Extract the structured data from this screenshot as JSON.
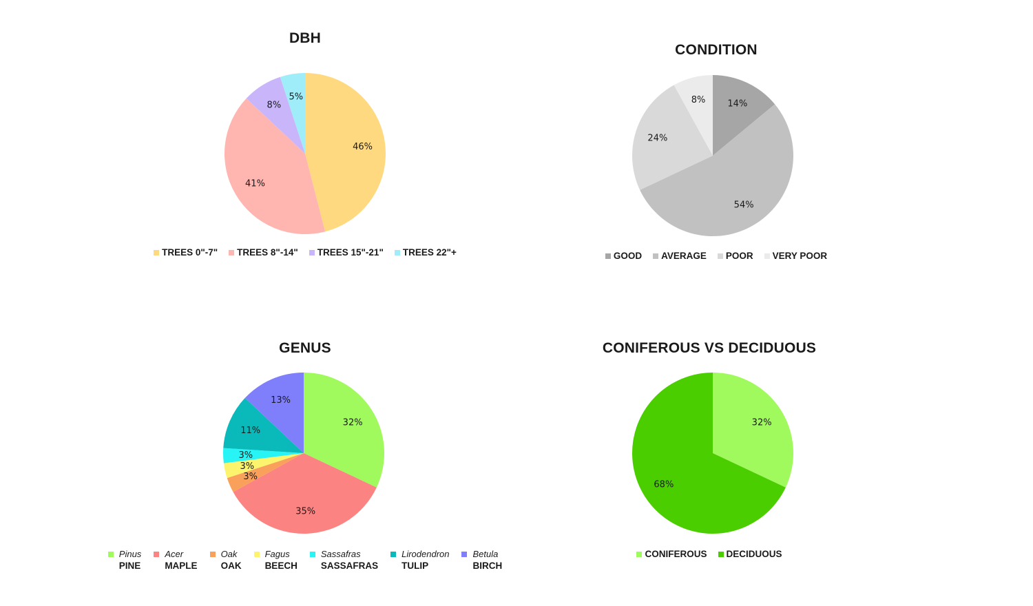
{
  "chart_data": [
    {
      "type": "pie",
      "title": "DBH",
      "slices": [
        {
          "label": "TREES 0\"-7\"",
          "value": 46,
          "display": "46%",
          "color": "#FFD97F"
        },
        {
          "label": "TREES 8\"-14\"",
          "value": 41,
          "display": "41%",
          "color": "#FFB5B0"
        },
        {
          "label": "TREES 15\"-21\"",
          "value": 8,
          "display": "8%",
          "color": "#C9B6FA"
        },
        {
          "label": "TREES 22\"+",
          "value": 5,
          "display": "5%",
          "color": "#9EEDF9"
        }
      ],
      "legend_position": "bottom"
    },
    {
      "type": "pie",
      "title": "CONDITION",
      "slices": [
        {
          "label": "GOOD",
          "value": 14,
          "display": "14%",
          "color": "#A6A6A6"
        },
        {
          "label": "AVERAGE",
          "value": 54,
          "display": "54%",
          "color": "#C1C1C1"
        },
        {
          "label": "POOR",
          "value": 24,
          "display": "24%",
          "color": "#D9D9D9"
        },
        {
          "label": "VERY POOR",
          "value": 8,
          "display": "8%",
          "color": "#EBEBEB"
        }
      ],
      "legend_position": "bottom"
    },
    {
      "type": "pie",
      "title": "GENUS",
      "slices": [
        {
          "label": "Pinus",
          "common": "PINE",
          "value": 32,
          "display": "32%",
          "color": "#A0FA5D"
        },
        {
          "label": "Acer",
          "common": "MAPLE",
          "value": 35,
          "display": "35%",
          "color": "#FB8483"
        },
        {
          "label": "Oak",
          "common": "OAK",
          "value": 3,
          "display": "3%",
          "color": "#F9A15B"
        },
        {
          "label": "Fagus",
          "common": "BEECH",
          "value": 3,
          "display": "3%",
          "color": "#FCF46C"
        },
        {
          "label": "Sassafras",
          "common": "SASSAFRAS",
          "value": 3,
          "display": "3%",
          "color": "#29F4F5"
        },
        {
          "label": "Lirodendron",
          "common": "TULIP",
          "value": 11,
          "display": "11%",
          "color": "#0ABABA"
        },
        {
          "label": "Betula",
          "common": "BIRCH",
          "value": 13,
          "display": "13%",
          "color": "#7F7FFC"
        }
      ],
      "legend_position": "bottom"
    },
    {
      "type": "pie",
      "title": "CONIFEROUS VS DECIDUOUS",
      "slices": [
        {
          "label": "CONIFEROUS",
          "value": 32,
          "display": "32%",
          "color": "#A0FA5D"
        },
        {
          "label": "DECIDUOUS",
          "value": 68,
          "display": "68%",
          "color": "#4BCE00"
        }
      ],
      "legend_position": "bottom"
    }
  ]
}
